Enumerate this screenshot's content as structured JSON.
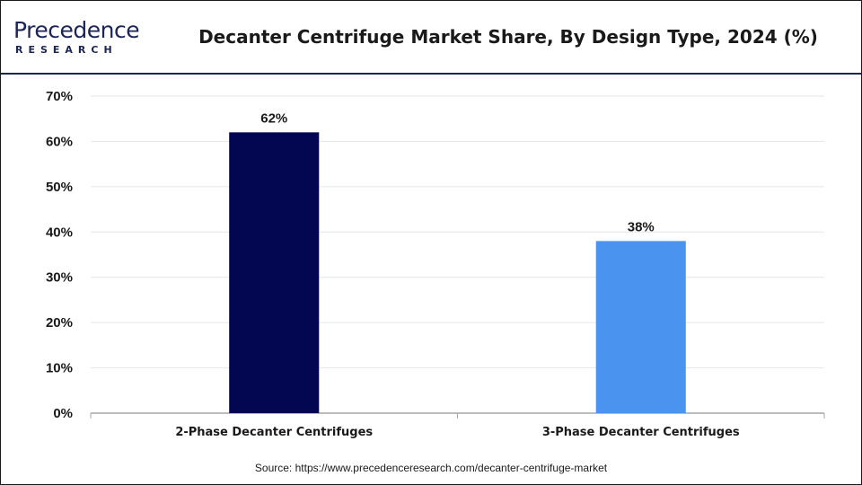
{
  "brand": {
    "name": "Precedence",
    "sub": "RESEARCH"
  },
  "title": "Decanter Centrifuge Market Share, By Design Type, 2024 (%)",
  "source": "Source: https://www.precedenceresearch.com/decanter-centrifuge-market",
  "colors": {
    "brand": "#1b2556",
    "series": [
      "#030752",
      "#4a94ef"
    ],
    "grid": "#e6e6e6",
    "axis": "#a6a6a6"
  },
  "chart_data": {
    "type": "bar",
    "title": "Decanter Centrifuge Market Share, By Design Type, 2024 (%)",
    "categories": [
      "2-Phase Decanter Centrifuges",
      "3-Phase Decanter Centrifuges"
    ],
    "values": [
      62,
      38
    ],
    "value_labels": [
      "62%",
      "38%"
    ],
    "ylim": [
      0,
      70
    ],
    "yticks": [
      0,
      10,
      20,
      30,
      40,
      50,
      60,
      70
    ],
    "ytick_labels": [
      "0%",
      "10%",
      "20%",
      "30%",
      "40%",
      "50%",
      "60%",
      "70%"
    ],
    "grid": true,
    "legend": "none"
  }
}
